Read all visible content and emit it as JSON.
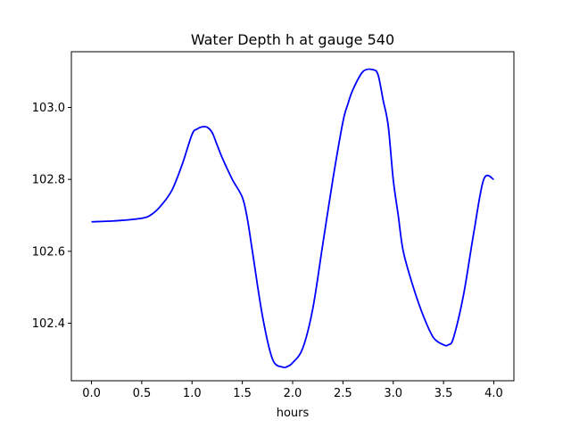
{
  "chart_data": {
    "type": "line",
    "title": "Water Depth h at gauge 540",
    "xlabel": "hours",
    "ylabel": "",
    "xlim": [
      -0.2,
      4.2
    ],
    "ylim": [
      102.24,
      103.155
    ],
    "xticks": [
      0.0,
      0.5,
      1.0,
      1.5,
      2.0,
      2.5,
      3.0,
      3.5,
      4.0
    ],
    "xtick_labels": [
      "0.0",
      "0.5",
      "1.0",
      "1.5",
      "2.0",
      "2.5",
      "3.0",
      "3.5",
      "4.0"
    ],
    "yticks": [
      102.4,
      102.6,
      102.8,
      103.0
    ],
    "ytick_labels": [
      "102.4",
      "102.6",
      "102.8",
      "103.0"
    ],
    "grid": false,
    "series": [
      {
        "color": "#0000ff",
        "x": [
          0.0,
          0.25,
          0.5,
          0.6,
          0.7,
          0.8,
          0.9,
          1.0,
          1.05,
          1.1,
          1.15,
          1.2,
          1.25,
          1.3,
          1.4,
          1.5,
          1.55,
          1.6,
          1.7,
          1.8,
          1.9,
          1.95,
          2.0,
          2.1,
          2.2,
          2.3,
          2.4,
          2.5,
          2.55,
          2.6,
          2.7,
          2.8,
          2.85,
          2.9,
          2.95,
          3.0,
          3.05,
          3.1,
          3.2,
          3.3,
          3.4,
          3.5,
          3.55,
          3.6,
          3.7,
          3.8,
          3.9,
          4.0
        ],
        "y": [
          102.682,
          102.685,
          102.692,
          102.703,
          102.73,
          102.77,
          102.84,
          102.925,
          102.94,
          102.946,
          102.945,
          102.93,
          102.895,
          102.86,
          102.8,
          102.75,
          102.69,
          102.6,
          102.42,
          102.3,
          102.278,
          102.28,
          102.29,
          102.33,
          102.44,
          102.62,
          102.8,
          102.96,
          103.01,
          103.05,
          103.1,
          103.105,
          103.09,
          103.02,
          102.95,
          102.8,
          102.7,
          102.6,
          102.5,
          102.42,
          102.36,
          102.34,
          102.34,
          102.36,
          102.48,
          102.65,
          102.8,
          102.8
        ]
      }
    ]
  }
}
